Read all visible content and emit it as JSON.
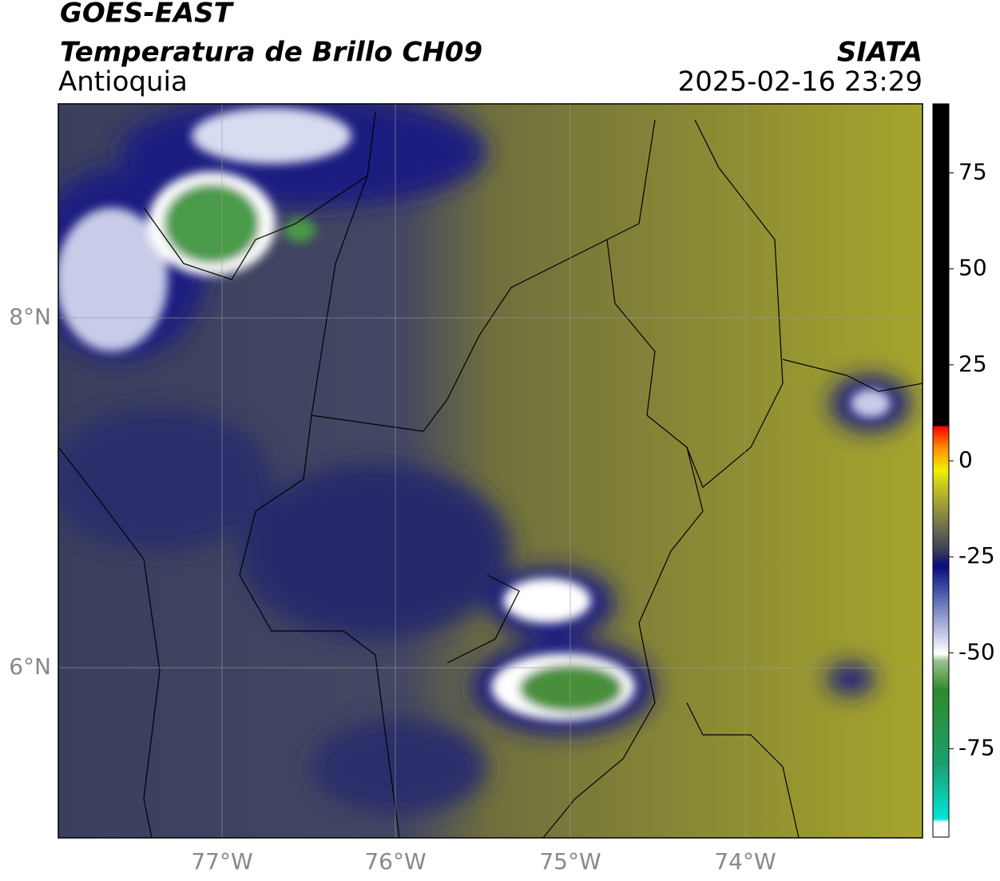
{
  "header": {
    "satellite": "GOES-EAST",
    "product": "Temperatura de Brillo CH09",
    "region": "Antioquia",
    "agency": "SIATA",
    "timestamp": "2025-02-16 23:29"
  },
  "map": {
    "lon_labels": [
      "77°W",
      "76°W",
      "75°W",
      "74°W"
    ],
    "lat_labels": [
      "8°N",
      "6°N"
    ]
  },
  "colorbar": {
    "range": [
      -98,
      93
    ],
    "ticks": [
      75,
      50,
      25,
      0,
      -25,
      -50,
      -75
    ]
  }
}
